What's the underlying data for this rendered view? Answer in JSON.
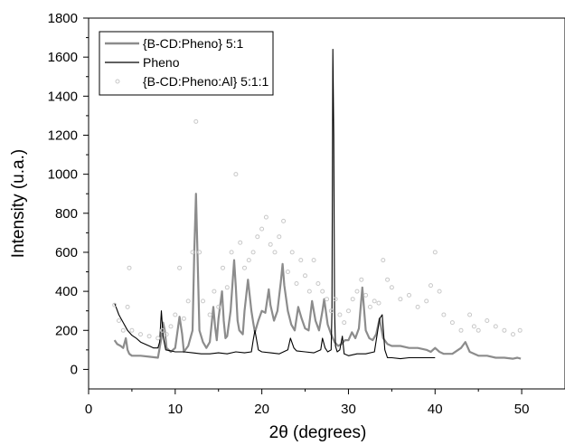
{
  "chart_data": {
    "type": "line",
    "xlabel": "2θ (degrees)",
    "ylabel": "Intensity (u.a.)",
    "xlim": [
      0,
      55
    ],
    "ylim": [
      -100,
      1800
    ],
    "xticks": [
      0,
      10,
      20,
      30,
      40,
      50
    ],
    "yticks": [
      0,
      200,
      400,
      600,
      800,
      1000,
      1200,
      1400,
      1600,
      1800
    ],
    "grid": false,
    "legend": "top-left",
    "series": [
      {
        "name": "{B-CD:Pheno} 5:1",
        "style": "line",
        "color": "#8c8c8c",
        "x": [
          3,
          3.3,
          3.7,
          4.0,
          4.3,
          4.5,
          4.7,
          5.0,
          6.0,
          7.0,
          8.0,
          8.4,
          8.6,
          8.8,
          9.0,
          9.5,
          10.0,
          10.5,
          10.8,
          11.0,
          11.5,
          12.0,
          12.2,
          12.4,
          12.6,
          12.8,
          13.2,
          13.6,
          14.0,
          14.4,
          14.6,
          14.8,
          15.0,
          15.4,
          15.6,
          15.8,
          16.0,
          16.4,
          16.8,
          17.0,
          17.2,
          17.4,
          17.8,
          18.0,
          18.4,
          18.8,
          19.0,
          19.2,
          19.6,
          20.0,
          20.4,
          20.8,
          21.0,
          21.4,
          21.8,
          22.2,
          22.4,
          22.6,
          23.0,
          23.4,
          23.8,
          24.2,
          24.6,
          25.0,
          25.4,
          25.8,
          26.2,
          26.6,
          27.0,
          27.2,
          27.6,
          28.0,
          28.4,
          28.8,
          29.2,
          29.6,
          30.0,
          30.4,
          30.8,
          31.2,
          31.6,
          32.0,
          32.4,
          32.8,
          33.2,
          33.6,
          34.0,
          34.5,
          35.0,
          36.0,
          37.0,
          38.0,
          39.0,
          39.5,
          40.0,
          40.5,
          41.0,
          42.0,
          43.0,
          43.5,
          44.0,
          45.0,
          46.0,
          47.0,
          48.0,
          49.0,
          49.5,
          49.9
        ],
        "y": [
          150,
          130,
          120,
          110,
          160,
          100,
          80,
          70,
          70,
          65,
          60,
          160,
          240,
          200,
          110,
          90,
          110,
          270,
          180,
          90,
          120,
          200,
          600,
          900,
          550,
          200,
          140,
          110,
          140,
          320,
          220,
          150,
          260,
          400,
          250,
          160,
          170,
          300,
          560,
          420,
          250,
          200,
          180,
          300,
          460,
          300,
          240,
          190,
          250,
          300,
          290,
          410,
          330,
          250,
          300,
          450,
          540,
          430,
          300,
          230,
          200,
          320,
          260,
          210,
          200,
          350,
          250,
          200,
          300,
          360,
          230,
          180,
          140,
          120,
          130,
          150,
          150,
          190,
          160,
          210,
          420,
          200,
          160,
          150,
          180,
          260,
          160,
          130,
          120,
          120,
          110,
          110,
          100,
          90,
          110,
          90,
          80,
          80,
          110,
          140,
          90,
          70,
          70,
          60,
          60,
          55,
          60,
          55
        ]
      },
      {
        "name": "Pheno",
        "style": "line",
        "color": "#000000",
        "x": [
          3,
          3.5,
          4.0,
          4.5,
          5.0,
          5.5,
          6.0,
          6.5,
          7.0,
          7.5,
          8.0,
          8.2,
          8.4,
          8.6,
          8.9,
          9.5,
          10,
          11,
          12,
          13,
          14,
          15,
          16,
          17,
          18,
          18.8,
          19.0,
          19.2,
          19.6,
          20,
          21,
          22,
          23,
          23.3,
          23.7,
          24,
          25,
          26,
          26.8,
          27.0,
          27.3,
          27.6,
          28.0,
          28.1,
          28.2,
          28.3,
          28.4,
          28.5,
          28.7,
          29.0,
          29.3,
          29.5,
          30.0,
          31.0,
          32.0,
          33.0,
          33.6,
          33.9,
          34.2,
          34.5,
          35,
          36,
          37,
          38,
          39,
          40
        ],
        "y": [
          340,
          280,
          240,
          200,
          175,
          160,
          140,
          130,
          120,
          110,
          110,
          140,
          300,
          170,
          100,
          95,
          90,
          90,
          85,
          80,
          80,
          85,
          80,
          90,
          85,
          90,
          150,
          200,
          100,
          90,
          85,
          80,
          100,
          160,
          110,
          95,
          90,
          85,
          100,
          160,
          110,
          90,
          100,
          300,
          1640,
          1200,
          300,
          120,
          90,
          100,
          170,
          80,
          70,
          80,
          80,
          90,
          260,
          280,
          100,
          60,
          60,
          55,
          60,
          60,
          60,
          60
        ]
      },
      {
        "name": "{B-CD:Pheno:Al} 5:1:1",
        "style": "scatter",
        "color": "#c8c8c8",
        "x": [
          3,
          3.5,
          4.0,
          4.5,
          4.7,
          5.0,
          6.0,
          7.0,
          8.0,
          8.5,
          9.0,
          9.5,
          10.0,
          10.5,
          11.0,
          11.5,
          12.0,
          12.4,
          12.8,
          13.2,
          14.0,
          14.5,
          15.0,
          15.5,
          16.0,
          16.5,
          17.0,
          17.5,
          18.0,
          18.5,
          19.0,
          19.5,
          20.0,
          20.5,
          21.0,
          21.5,
          22.0,
          22.5,
          23.0,
          23.5,
          24.0,
          24.5,
          25.0,
          25.5,
          26.0,
          26.5,
          27.0,
          27.5,
          28.0,
          28.5,
          29.0,
          29.5,
          30.0,
          30.5,
          31.0,
          31.5,
          32.0,
          32.5,
          33.0,
          33.5,
          34.0,
          34.5,
          35.0,
          36.0,
          37.0,
          38.0,
          39.0,
          39.5,
          40.0,
          40.5,
          41.0,
          42.0,
          43.0,
          44.0,
          44.5,
          45.0,
          46.0,
          47.0,
          48.0,
          49.0,
          49.8
        ],
        "y": [
          330,
          250,
          200,
          320,
          520,
          200,
          180,
          170,
          160,
          200,
          180,
          220,
          280,
          520,
          260,
          350,
          600,
          1270,
          600,
          350,
          280,
          400,
          320,
          520,
          420,
          600,
          1000,
          650,
          520,
          560,
          600,
          680,
          720,
          780,
          640,
          600,
          680,
          760,
          500,
          600,
          440,
          560,
          480,
          400,
          560,
          440,
          400,
          360,
          300,
          360,
          280,
          240,
          300,
          360,
          400,
          460,
          380,
          320,
          350,
          340,
          560,
          460,
          420,
          360,
          380,
          320,
          350,
          430,
          600,
          400,
          280,
          240,
          200,
          280,
          220,
          200,
          250,
          220,
          200,
          180,
          200
        ]
      }
    ]
  }
}
